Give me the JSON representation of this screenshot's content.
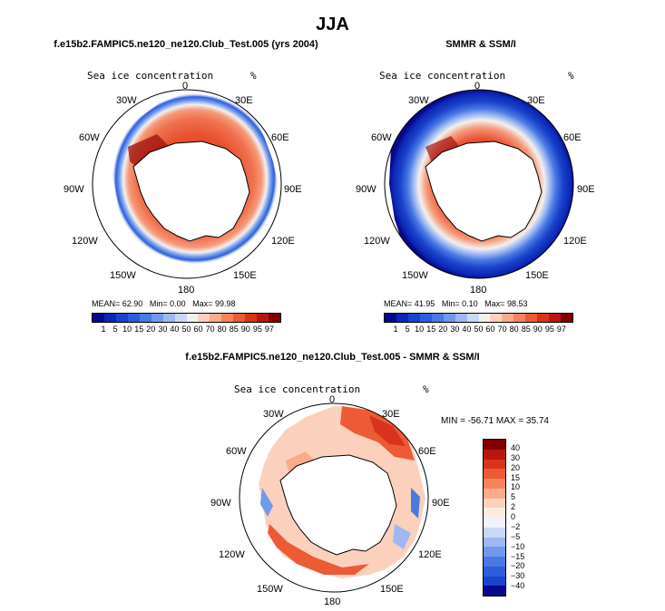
{
  "title": "JJA",
  "panel1": {
    "title": "f.e15b2.FAMPIC5.ne120_ne120.Club_Test.005 (yrs 2004)",
    "field_label": "Sea ice concentration",
    "units": "%",
    "lon_labels": {
      "n": "0",
      "ne": "30E",
      "e1": "60E",
      "e": "90E",
      "se1": "120E",
      "se": "150E",
      "s": "180",
      "sw": "150W",
      "sw1": "120W",
      "w": "90W",
      "nw1": "60W",
      "nw": "30W"
    },
    "stats": {
      "mean_label": "MEAN=",
      "mean": "62.90",
      "min_label": "Min=",
      "min": "0.00",
      "max_label": "Max=",
      "max": "99.98"
    }
  },
  "panel2": {
    "title": "SMMR & SSM/I",
    "field_label": "Sea ice concentration",
    "units": "%",
    "lon_labels": {
      "n": "0",
      "ne": "30E",
      "e1": "60E",
      "e": "90E",
      "se1": "120E",
      "se": "150E",
      "s": "180",
      "sw": "150W",
      "sw1": "120W",
      "w": "90W",
      "nw1": "60W",
      "nw": "30W"
    },
    "stats": {
      "mean_label": "MEAN=",
      "mean": "41.95",
      "min_label": "Min=",
      "min": "0.10",
      "max_label": "Max=",
      "max": "98.53"
    }
  },
  "panel3": {
    "title": "f.e15b2.FAMPIC5.ne120_ne120.Club_Test.005 - SMMR & SSM/I",
    "field_label": "Sea ice concentration",
    "units": "%",
    "lon_labels": {
      "n": "0",
      "ne": "30E",
      "e1": "60E",
      "e": "90E",
      "se1": "120E",
      "se": "150E",
      "s": "180",
      "sw": "150W",
      "sw1": "120W",
      "w": "90W",
      "nw1": "60W",
      "nw": "30W"
    },
    "stats_text": "MIN = -56.71 MAX =  35.74"
  },
  "colorbar_abs": {
    "labels": [
      "1",
      "5",
      "10",
      "15",
      "20",
      "30",
      "40",
      "50",
      "60",
      "70",
      "80",
      "85",
      "90",
      "95",
      "97"
    ],
    "colors": [
      "#08088c",
      "#0c27b4",
      "#1a43cc",
      "#2c5edc",
      "#4a79e4",
      "#7198ec",
      "#9db8f2",
      "#c8d8f6",
      "#f3f0ee",
      "#fbd1bd",
      "#f9ac8c",
      "#f4835e",
      "#ec5a36",
      "#d9331d",
      "#b8170f",
      "#800000"
    ]
  },
  "colorbar_diff": {
    "labels": [
      "40",
      "30",
      "20",
      "15",
      "10",
      "5",
      "2",
      "0",
      "−2",
      "−5",
      "−10",
      "−15",
      "−20",
      "−30",
      "−40"
    ],
    "colors": [
      "#800000",
      "#b8170f",
      "#d9331d",
      "#ec5a36",
      "#f4835e",
      "#f9ac8c",
      "#fbd1bd",
      "#fdebe0",
      "#eef2fb",
      "#c8d8f6",
      "#9db8f2",
      "#7198ec",
      "#4a79e4",
      "#2c5edc",
      "#1a43cc",
      "#08088c"
    ]
  }
}
